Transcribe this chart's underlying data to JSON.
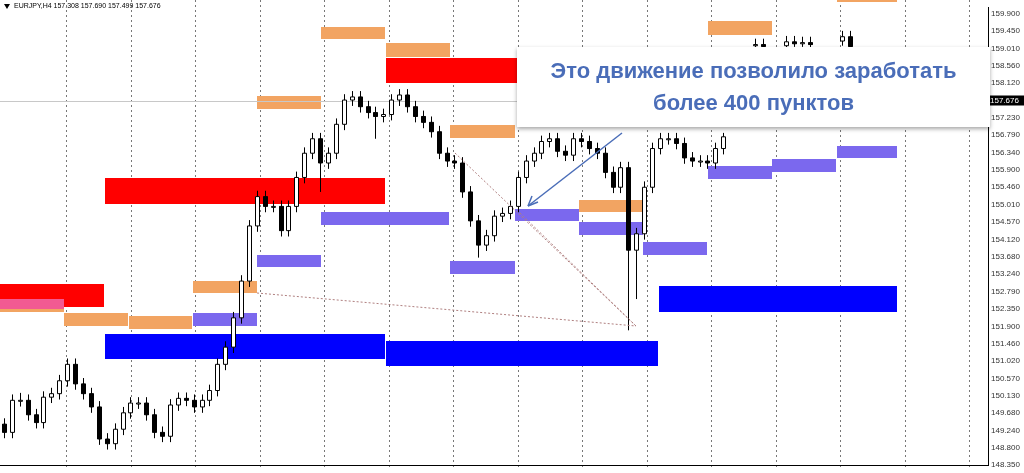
{
  "chart_data": {
    "type": "candlestick",
    "title": "EURJPY,H4  157.308 157.690 157.499 157.676",
    "annotations": [
      "Это движение позволило заработать более 400 пунктов"
    ],
    "categories": [
      null,
      null,
      null,
      null,
      null,
      null,
      null,
      null,
      null,
      null,
      null,
      null,
      null,
      null,
      null,
      null,
      null,
      null,
      null,
      null,
      null,
      null,
      null,
      null,
      null,
      null,
      null,
      null,
      null,
      null,
      null,
      null,
      null,
      null,
      null,
      null,
      null,
      null,
      null,
      null,
      null,
      null,
      null,
      null,
      null,
      null,
      null,
      null,
      null,
      null,
      null,
      null,
      null,
      null,
      null,
      null,
      null,
      null,
      null,
      null,
      null,
      null,
      null,
      null,
      null,
      null,
      null,
      null,
      null,
      null,
      null,
      null,
      null,
      null,
      null,
      null,
      null,
      null,
      null,
      null,
      null,
      null,
      null,
      null,
      null,
      null,
      null,
      null,
      null,
      null,
      null,
      null,
      null,
      null,
      null,
      null,
      null,
      null,
      null,
      null,
      null,
      null,
      null,
      null,
      null,
      null,
      null,
      null,
      null,
      null,
      null,
      null,
      null,
      null,
      null,
      null,
      null,
      null,
      null,
      null,
      null,
      null,
      null,
      null,
      null
    ],
    "ohlc": [
      [
        149.4,
        149.55,
        149.04,
        149.19
      ],
      [
        149.19,
        150.16,
        149.04,
        150.01
      ],
      [
        150.01,
        150.2,
        149.85,
        150.01
      ],
      [
        150.01,
        150.16,
        149.49,
        149.64
      ],
      [
        149.64,
        149.79,
        149.29,
        149.44
      ],
      [
        149.44,
        150.24,
        149.29,
        150.09
      ],
      [
        150.09,
        150.33,
        149.94,
        150.18
      ],
      [
        150.18,
        150.66,
        150.03,
        150.51
      ],
      [
        150.51,
        151.08,
        150.36,
        150.93
      ],
      [
        150.93,
        151.08,
        150.28,
        150.43
      ],
      [
        150.43,
        150.58,
        150.03,
        150.18
      ],
      [
        150.18,
        150.33,
        149.69,
        149.84
      ],
      [
        149.84,
        149.99,
        148.87,
        149.02
      ],
      [
        149.02,
        149.17,
        148.75,
        148.9
      ],
      [
        148.9,
        149.42,
        148.75,
        149.27
      ],
      [
        149.27,
        149.84,
        149.12,
        149.69
      ],
      [
        149.69,
        150.09,
        149.54,
        149.94
      ],
      [
        149.94,
        150.09,
        149.79,
        149.94
      ],
      [
        149.94,
        150.09,
        149.49,
        149.64
      ],
      [
        149.64,
        149.79,
        149.04,
        149.19
      ],
      [
        149.19,
        149.34,
        148.94,
        149.09
      ],
      [
        149.09,
        150.04,
        148.94,
        149.89
      ],
      [
        149.89,
        150.21,
        149.74,
        150.06
      ],
      [
        150.06,
        150.21,
        149.86,
        150.01
      ],
      [
        150.01,
        150.16,
        149.69,
        149.84
      ],
      [
        149.84,
        150.16,
        149.69,
        150.01
      ],
      [
        150.01,
        150.41,
        149.86,
        150.26
      ],
      [
        150.26,
        151.08,
        150.11,
        150.93
      ],
      [
        150.93,
        151.52,
        150.78,
        151.37
      ],
      [
        151.37,
        152.27,
        151.22,
        152.12
      ],
      [
        152.12,
        153.21,
        151.97,
        153.06
      ],
      [
        153.06,
        154.62,
        152.91,
        154.47
      ],
      [
        154.47,
        155.37,
        154.32,
        155.22
      ],
      [
        155.22,
        155.37,
        154.82,
        154.97
      ],
      [
        154.97,
        155.12,
        154.82,
        154.97
      ],
      [
        154.97,
        155.12,
        154.2,
        154.35
      ],
      [
        154.35,
        155.12,
        154.2,
        154.97
      ],
      [
        154.97,
        155.86,
        154.82,
        155.71
      ],
      [
        155.71,
        156.48,
        155.56,
        156.33
      ],
      [
        156.33,
        156.85,
        156.18,
        156.7
      ],
      [
        156.7,
        156.85,
        155.34,
        156.08
      ],
      [
        156.08,
        156.48,
        155.93,
        156.33
      ],
      [
        156.33,
        157.22,
        156.18,
        157.07
      ],
      [
        157.07,
        157.84,
        156.92,
        157.69
      ],
      [
        157.69,
        157.92,
        157.54,
        157.77
      ],
      [
        157.77,
        157.92,
        157.37,
        157.52
      ],
      [
        157.52,
        157.67,
        157.22,
        157.37
      ],
      [
        157.37,
        157.52,
        156.7,
        157.27
      ],
      [
        157.27,
        157.47,
        157.12,
        157.32
      ],
      [
        157.32,
        157.84,
        157.17,
        157.69
      ],
      [
        157.69,
        157.97,
        157.54,
        157.82
      ],
      [
        157.82,
        157.97,
        157.37,
        157.52
      ],
      [
        157.52,
        157.67,
        157.12,
        157.27
      ],
      [
        157.27,
        157.42,
        156.97,
        157.12
      ],
      [
        157.12,
        157.27,
        156.73,
        156.88
      ],
      [
        156.88,
        157.03,
        156.18,
        156.33
      ],
      [
        156.33,
        156.48,
        155.98,
        156.13
      ],
      [
        156.13,
        156.28,
        155.93,
        156.08
      ],
      [
        156.08,
        156.23,
        155.19,
        155.34
      ],
      [
        155.34,
        155.49,
        154.45,
        154.6
      ],
      [
        154.6,
        154.75,
        153.66,
        153.98
      ],
      [
        153.98,
        154.37,
        153.83,
        154.22
      ],
      [
        154.22,
        154.87,
        154.07,
        154.72
      ],
      [
        154.72,
        154.94,
        154.57,
        154.79
      ],
      [
        154.79,
        155.12,
        154.64,
        154.97
      ],
      [
        154.97,
        155.86,
        154.82,
        155.71
      ],
      [
        155.71,
        156.28,
        155.56,
        156.13
      ],
      [
        156.13,
        156.48,
        155.98,
        156.33
      ],
      [
        156.33,
        156.78,
        156.18,
        156.63
      ],
      [
        156.63,
        156.85,
        156.48,
        156.7
      ],
      [
        156.7,
        156.85,
        156.23,
        156.38
      ],
      [
        156.38,
        156.53,
        156.13,
        156.28
      ],
      [
        156.28,
        156.85,
        156.13,
        156.7
      ],
      [
        156.7,
        156.85,
        156.48,
        156.63
      ],
      [
        156.63,
        156.78,
        156.3,
        156.45
      ],
      [
        156.45,
        156.6,
        156.18,
        156.33
      ],
      [
        156.33,
        156.48,
        155.69,
        155.84
      ],
      [
        155.84,
        155.99,
        155.31,
        155.46
      ],
      [
        155.46,
        156.11,
        155.31,
        155.96
      ],
      [
        155.96,
        156.11,
        151.8,
        153.85
      ],
      [
        153.85,
        154.42,
        152.6,
        154.27
      ],
      [
        154.27,
        155.61,
        154.12,
        155.46
      ],
      [
        155.46,
        156.6,
        155.31,
        156.45
      ],
      [
        156.45,
        156.85,
        156.3,
        156.7
      ],
      [
        156.7,
        156.85,
        156.55,
        156.7
      ],
      [
        156.7,
        156.85,
        156.43,
        156.58
      ],
      [
        156.58,
        156.73,
        156.06,
        156.21
      ],
      [
        156.21,
        156.36,
        155.98,
        156.13
      ],
      [
        156.13,
        156.28,
        155.98,
        156.13
      ],
      [
        156.13,
        156.28,
        155.93,
        156.08
      ],
      [
        156.08,
        156.6,
        155.93,
        156.45
      ],
      [
        156.45,
        156.85,
        156.3,
        156.75
      ],
      null,
      null,
      null,
      [
        159.08,
        159.26,
        159.03,
        159.11
      ],
      [
        159.11,
        159.26,
        159.03,
        159.06
      ],
      null,
      null,
      [
        159.08,
        159.33,
        159.03,
        159.18
      ],
      [
        159.18,
        159.33,
        159.05,
        159.13
      ],
      [
        159.13,
        159.31,
        159.05,
        159.16
      ],
      [
        159.16,
        159.31,
        159.04,
        159.11
      ],
      null,
      null,
      null,
      [
        159.2,
        159.46,
        159.08,
        159.31
      ],
      [
        159.31,
        159.46,
        159.04,
        159.06
      ],
      null,
      null,
      null,
      null,
      null,
      null,
      null,
      null,
      null,
      null,
      null,
      null,
      null,
      null,
      null,
      null,
      null
    ],
    "ylim": [
      148.35,
      160.05
    ],
    "yticks": [
      {
        "value": 148.35,
        "label": "148.350"
      },
      {
        "value": 148.8,
        "label": "148.800"
      },
      {
        "value": 149.24,
        "label": "149.240"
      },
      {
        "value": 149.68,
        "label": "149.680"
      },
      {
        "value": 150.13,
        "label": "150.130"
      },
      {
        "value": 150.57,
        "label": "150.570"
      },
      {
        "value": 151.02,
        "label": "151.020"
      },
      {
        "value": 151.46,
        "label": "151.460"
      },
      {
        "value": 151.9,
        "label": "151.900"
      },
      {
        "value": 152.35,
        "label": "152.350"
      },
      {
        "value": 152.79,
        "label": "152.790"
      },
      {
        "value": 153.24,
        "label": "153.240"
      },
      {
        "value": 153.68,
        "label": "153.680"
      },
      {
        "value": 154.12,
        "label": "154.120"
      },
      {
        "value": 154.57,
        "label": "154.570"
      },
      {
        "value": 155.01,
        "label": "155.010"
      },
      {
        "value": 155.46,
        "label": "155.460"
      },
      {
        "value": 155.9,
        "label": "155.900"
      },
      {
        "value": 156.34,
        "label": "156.340"
      },
      {
        "value": 156.79,
        "label": "156.790"
      },
      {
        "value": 157.23,
        "label": "157.230"
      },
      {
        "value": 158.12,
        "label": "158.120"
      },
      {
        "value": 158.56,
        "label": "158.560"
      },
      {
        "value": 159.01,
        "label": "159.010"
      },
      {
        "value": 159.45,
        "label": "159.450"
      },
      {
        "value": 159.9,
        "label": "159.900"
      }
    ],
    "ref_lines": [
      {
        "axis": "y",
        "value": 157.676,
        "label": "157.676",
        "color": "#c8c8c8"
      }
    ],
    "tick_labels": "y"
  }
}
